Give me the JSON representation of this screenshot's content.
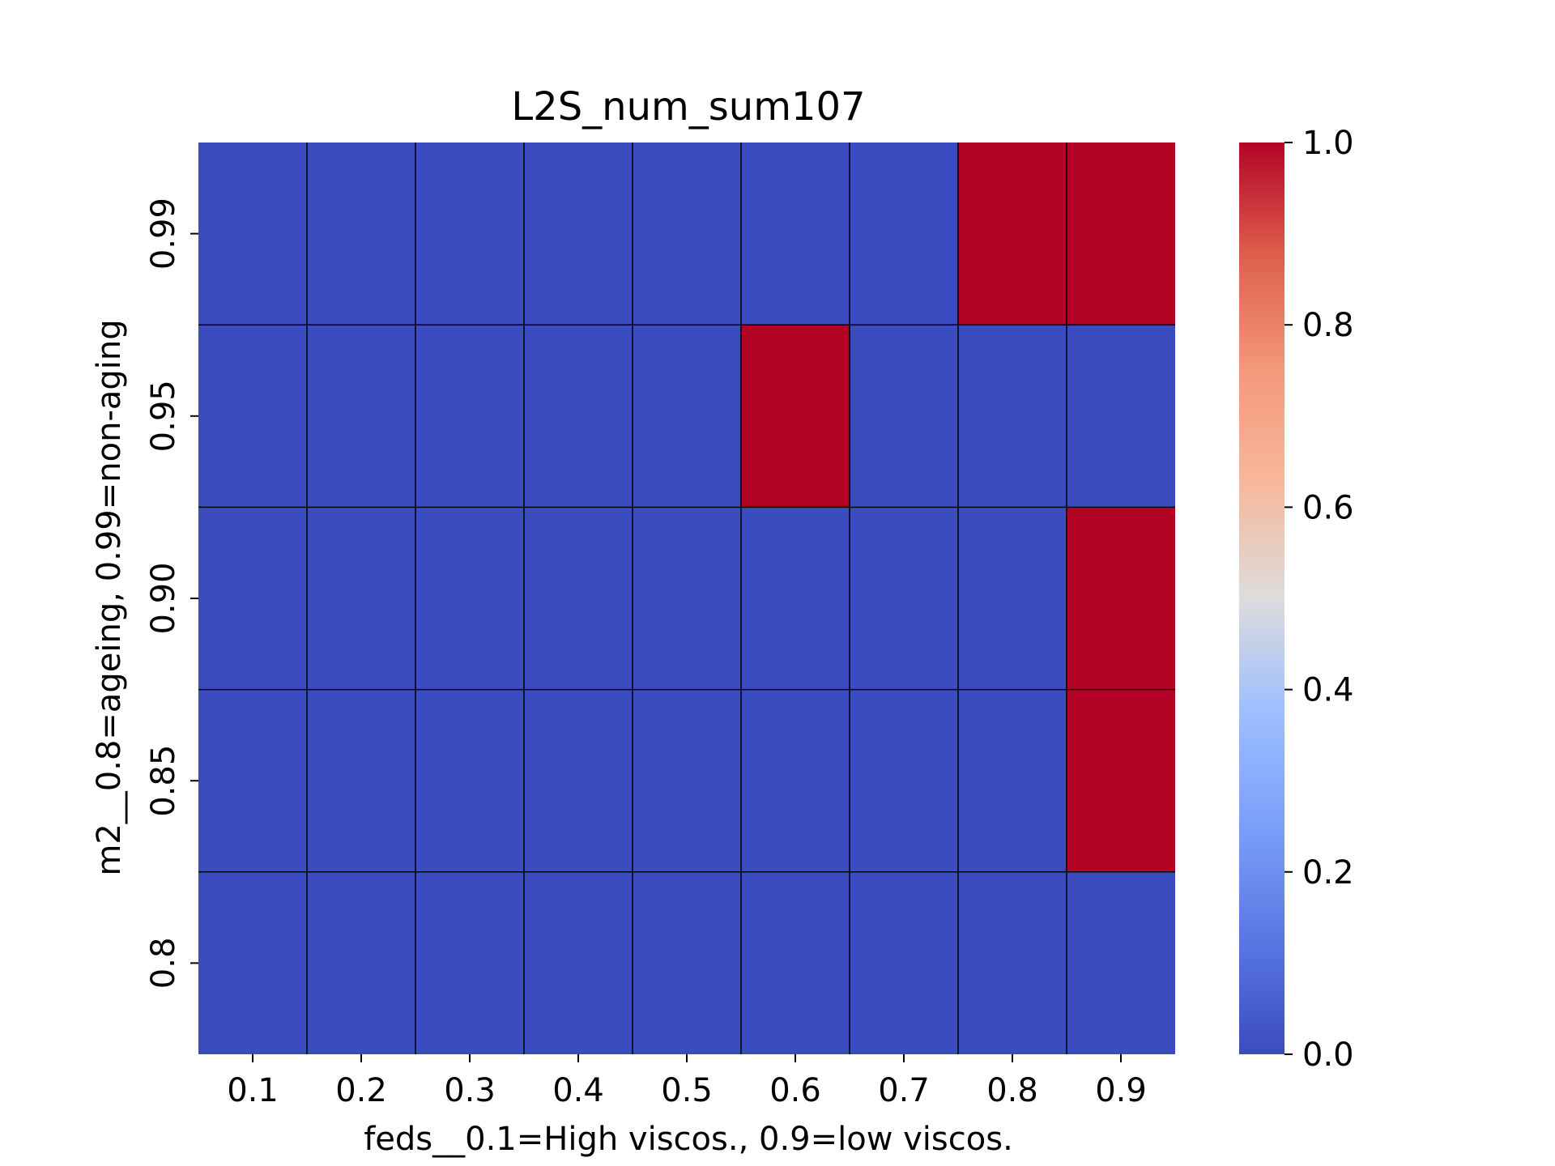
{
  "chart_data": {
    "type": "heatmap",
    "title": "L2S_num_sum107",
    "xlabel": "feds__0.1=High viscos., 0.9=low viscos.",
    "ylabel": "m2__0.8=ageing, 0.99=non-aging",
    "x_categories": [
      "0.1",
      "0.2",
      "0.3",
      "0.4",
      "0.5",
      "0.6",
      "0.7",
      "0.8",
      "0.9"
    ],
    "y_categories": [
      "0.99",
      "0.95",
      "0.90",
      "0.85",
      "0.8"
    ],
    "values": [
      [
        0,
        0,
        0,
        0,
        0,
        0,
        0,
        1,
        1
      ],
      [
        0,
        0,
        0,
        0,
        0,
        1,
        0,
        0,
        0
      ],
      [
        0,
        0,
        0,
        0,
        0,
        0,
        0,
        0,
        1
      ],
      [
        0,
        0,
        0,
        0,
        0,
        0,
        0,
        0,
        1
      ],
      [
        0,
        0,
        0,
        0,
        0,
        0,
        0,
        0,
        0
      ]
    ],
    "colormap": "coolwarm",
    "colors": {
      "low": "#3b4cc0",
      "high": "#b40426",
      "gridline": "#000000"
    },
    "vmin": 0,
    "vmax": 1,
    "colorbar": {
      "ticks": [
        "0.0",
        "0.2",
        "0.4",
        "0.6",
        "0.8",
        "1.0"
      ]
    }
  }
}
